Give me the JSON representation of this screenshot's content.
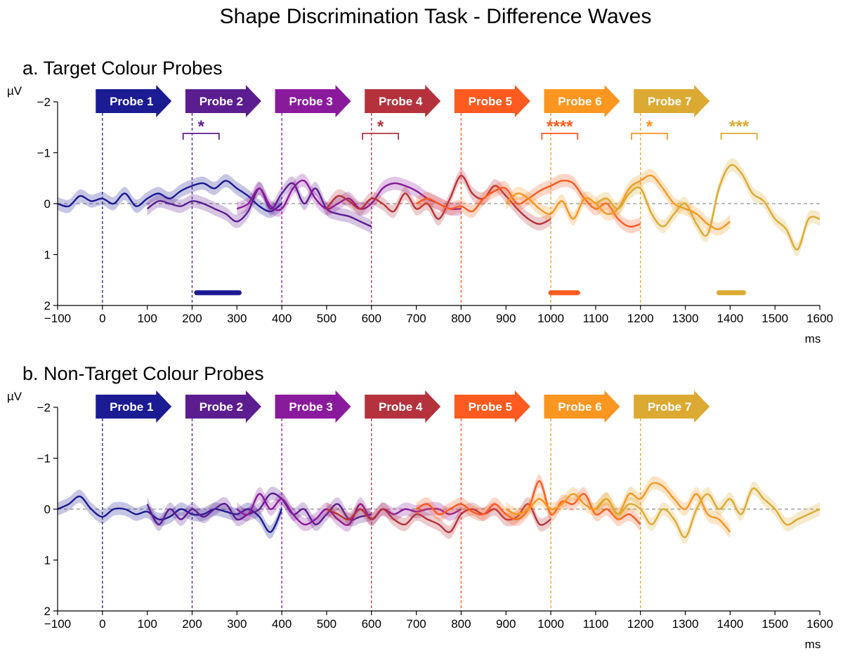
{
  "chart_data": {
    "type": "line",
    "title": "Shape Discrimination Task - Difference Waves",
    "xlabel": "ms",
    "ylabel": "µV",
    "xlim": [
      -100,
      1600
    ],
    "ylim": [
      -2,
      2
    ],
    "y_inverted": true,
    "xticks": [
      -100,
      0,
      100,
      200,
      300,
      400,
      500,
      600,
      700,
      800,
      900,
      1000,
      1100,
      1200,
      1300,
      1400,
      1500,
      1600
    ],
    "xtick_labels": [
      "−100",
      "0",
      "100",
      "200",
      "300",
      "400",
      "500",
      "600",
      "700",
      "800",
      "900",
      "1000",
      "1100",
      "1200",
      "1300",
      "1400",
      "1500",
      "1600"
    ],
    "yticks": [
      -2,
      -1,
      0,
      1,
      2
    ],
    "ytick_labels": [
      "−2",
      "−1",
      "0",
      "1",
      "2"
    ],
    "colors": [
      "#1b1b93",
      "#5b1d8f",
      "#8a1a9c",
      "#b5323c",
      "#ff5a1f",
      "#fb9620",
      "#dcaa32"
    ],
    "probes": [
      {
        "name": "Probe 1",
        "onset": 0,
        "arrow_start": -15
      },
      {
        "name": "Probe 2",
        "onset": 200,
        "arrow_start": 185
      },
      {
        "name": "Probe 3",
        "onset": 400,
        "arrow_start": 385
      },
      {
        "name": "Probe 4",
        "onset": 600,
        "arrow_start": 585
      },
      {
        "name": "Probe 5",
        "onset": 800,
        "arrow_start": 785
      },
      {
        "name": "Probe 6",
        "onset": 1000,
        "arrow_start": 985
      },
      {
        "name": "Probe 7",
        "onset": 1200,
        "arrow_start": 1185
      }
    ],
    "panels": [
      {
        "label": "a.   Target Colour Probes",
        "series": [
          {
            "name": "Probe 1",
            "x": [
              -100,
              -75,
              -50,
              -25,
              0,
              25,
              50,
              75,
              100,
              125,
              150,
              175,
              200,
              225,
              250,
              275,
              300,
              325,
              350,
              375,
              400
            ],
            "y": [
              0.0,
              0.05,
              -0.15,
              -0.05,
              -0.1,
              0.0,
              -0.2,
              0.05,
              -0.1,
              -0.2,
              -0.1,
              -0.25,
              -0.35,
              -0.4,
              -0.3,
              -0.45,
              -0.3,
              -0.15,
              0.05,
              0.15,
              0.0
            ]
          },
          {
            "name": "Probe 2",
            "x": [
              100,
              125,
              150,
              175,
              200,
              225,
              250,
              275,
              300,
              325,
              350,
              375,
              400,
              425,
              450,
              475,
              500,
              525,
              550,
              575,
              600
            ],
            "y": [
              0.1,
              -0.05,
              0.0,
              0.05,
              -0.05,
              0.0,
              0.1,
              0.2,
              0.35,
              0.15,
              -0.3,
              0.1,
              -0.2,
              -0.4,
              0.0,
              -0.3,
              0.1,
              0.2,
              0.25,
              0.35,
              0.45
            ]
          },
          {
            "name": "Probe 3",
            "x": [
              300,
              325,
              350,
              375,
              400,
              425,
              450,
              475,
              500,
              525,
              550,
              575,
              600,
              625,
              650,
              675,
              700,
              725,
              750,
              775,
              800
            ],
            "y": [
              0.1,
              0.0,
              -0.3,
              0.05,
              0.1,
              -0.3,
              -0.45,
              -0.1,
              0.1,
              0.0,
              -0.1,
              0.1,
              0.0,
              -0.3,
              -0.4,
              -0.35,
              -0.25,
              -0.1,
              0.0,
              0.1,
              0.1
            ]
          },
          {
            "name": "Probe 4",
            "x": [
              500,
              525,
              550,
              575,
              600,
              625,
              650,
              675,
              700,
              725,
              750,
              775,
              800,
              825,
              850,
              875,
              900,
              925,
              950,
              975,
              1000
            ],
            "y": [
              0.1,
              -0.15,
              -0.05,
              0.1,
              -0.1,
              0.0,
              0.15,
              -0.2,
              0.1,
              0.0,
              0.3,
              -0.1,
              -0.55,
              -0.2,
              -0.1,
              -0.35,
              -0.15,
              0.1,
              0.3,
              0.4,
              0.3
            ]
          },
          {
            "name": "Probe 5",
            "x": [
              700,
              725,
              750,
              775,
              800,
              825,
              850,
              875,
              900,
              925,
              950,
              975,
              1000,
              1025,
              1050,
              1075,
              1100,
              1125,
              1150,
              1175,
              1200
            ],
            "y": [
              0.0,
              -0.1,
              0.0,
              0.1,
              0.05,
              0.15,
              -0.1,
              -0.25,
              -0.3,
              0.0,
              -0.1,
              -0.25,
              -0.35,
              -0.45,
              -0.4,
              -0.1,
              0.1,
              0.0,
              0.3,
              0.45,
              0.4
            ]
          },
          {
            "name": "Probe 6",
            "x": [
              900,
              925,
              950,
              975,
              1000,
              1025,
              1050,
              1075,
              1100,
              1125,
              1150,
              1175,
              1200,
              1225,
              1250,
              1275,
              1300,
              1325,
              1350,
              1375,
              1400
            ],
            "y": [
              0.0,
              -0.2,
              -0.1,
              0.1,
              0.2,
              -0.05,
              0.3,
              -0.1,
              0.0,
              0.2,
              0.1,
              -0.3,
              -0.45,
              -0.55,
              -0.3,
              0.0,
              0.1,
              0.2,
              0.4,
              0.5,
              0.35
            ]
          },
          {
            "name": "Probe 7",
            "x": [
              1100,
              1125,
              1150,
              1175,
              1200,
              1225,
              1250,
              1275,
              1300,
              1325,
              1350,
              1375,
              1400,
              1425,
              1450,
              1475,
              1500,
              1525,
              1550,
              1575,
              1600
            ],
            "y": [
              0.0,
              -0.1,
              0.1,
              -0.2,
              -0.3,
              0.2,
              0.45,
              0.2,
              0.0,
              0.4,
              0.6,
              -0.3,
              -0.75,
              -0.6,
              -0.2,
              -0.05,
              0.3,
              0.5,
              0.9,
              0.3,
              0.3
            ]
          }
        ],
        "significance_labels": [
          {
            "probe": "Probe 2",
            "text": "*",
            "range": [
              180,
              260
            ]
          },
          {
            "probe": "Probe 4",
            "text": "*",
            "range": [
              580,
              660
            ]
          },
          {
            "probe": "Probe 5",
            "text": "****",
            "range": [
              980,
              1060
            ]
          },
          {
            "probe": "Probe 6",
            "text": "*",
            "range": [
              1180,
              1260
            ]
          },
          {
            "probe": "Probe 7",
            "text": "***",
            "range": [
              1380,
              1460
            ]
          }
        ],
        "significance_bars": [
          {
            "color_index": 0,
            "range": [
              210,
              305
            ],
            "y": 1.75
          },
          {
            "color_index": 4,
            "range": [
              1000,
              1060
            ],
            "y": 1.75
          },
          {
            "color_index": 6,
            "range": [
              1375,
              1430
            ],
            "y": 1.75
          }
        ]
      },
      {
        "label": "b.   Non-Target Colour Probes",
        "series": [
          {
            "name": "Probe 1",
            "x": [
              -100,
              -75,
              -50,
              -25,
              0,
              25,
              50,
              75,
              100,
              125,
              150,
              175,
              200,
              225,
              250,
              275,
              300,
              325,
              350,
              375,
              400
            ],
            "y": [
              0.0,
              -0.1,
              -0.25,
              0.0,
              0.15,
              0.0,
              0.0,
              0.1,
              0.05,
              0.2,
              0.15,
              0.0,
              0.1,
              0.1,
              0.0,
              0.05,
              0.1,
              0.0,
              0.15,
              0.45,
              0.0
            ]
          },
          {
            "name": "Probe 2",
            "x": [
              100,
              125,
              150,
              175,
              200,
              225,
              250,
              275,
              300,
              325,
              350,
              375,
              400,
              425,
              450,
              475,
              500,
              525,
              550,
              575,
              600
            ],
            "y": [
              -0.1,
              0.3,
              0.0,
              0.2,
              0.0,
              0.15,
              0.0,
              -0.1,
              0.2,
              0.1,
              0.0,
              -0.3,
              -0.2,
              0.1,
              0.0,
              0.3,
              0.1,
              -0.1,
              0.2,
              0.15,
              0.1
            ]
          },
          {
            "name": "Probe 3",
            "x": [
              300,
              325,
              350,
              375,
              400,
              425,
              450,
              475,
              500,
              525,
              550,
              575,
              600,
              625,
              650,
              675,
              700,
              725,
              750,
              775,
              800
            ],
            "y": [
              0.0,
              0.1,
              -0.3,
              0.0,
              -0.2,
              0.1,
              0.3,
              0.2,
              0.0,
              0.2,
              0.3,
              -0.1,
              0.2,
              0.0,
              0.1,
              0.0,
              0.05,
              0.0,
              0.0,
              0.1,
              0.0
            ]
          },
          {
            "name": "Probe 4",
            "x": [
              500,
              525,
              550,
              575,
              600,
              625,
              650,
              675,
              700,
              725,
              750,
              775,
              800,
              825,
              850,
              875,
              900,
              925,
              950,
              975,
              1000
            ],
            "y": [
              0.0,
              0.1,
              0.2,
              0.0,
              0.2,
              0.0,
              0.2,
              0.3,
              0.1,
              0.2,
              0.3,
              0.45,
              0.1,
              0.0,
              0.1,
              0.0,
              0.2,
              0.15,
              -0.1,
              0.3,
              0.2
            ]
          },
          {
            "name": "Probe 5",
            "x": [
              700,
              725,
              750,
              775,
              800,
              825,
              850,
              875,
              900,
              925,
              950,
              975,
              1000,
              1025,
              1050,
              1075,
              1100,
              1125,
              1150,
              1175,
              1200
            ],
            "y": [
              0.0,
              -0.1,
              0.1,
              0.0,
              -0.1,
              0.05,
              0.1,
              -0.1,
              0.1,
              0.2,
              0.0,
              -0.55,
              0.1,
              -0.15,
              -0.1,
              -0.3,
              0.1,
              0.0,
              0.2,
              0.1,
              0.3
            ]
          },
          {
            "name": "Probe 6",
            "x": [
              900,
              925,
              950,
              975,
              1000,
              1025,
              1050,
              1075,
              1100,
              1125,
              1150,
              1175,
              1200,
              1225,
              1250,
              1275,
              1300,
              1325,
              1350,
              1375,
              1400
            ],
            "y": [
              0.0,
              0.1,
              0.0,
              -0.2,
              0.0,
              -0.1,
              -0.3,
              -0.1,
              0.0,
              -0.2,
              0.1,
              -0.3,
              -0.2,
              -0.5,
              -0.45,
              -0.2,
              0.0,
              -0.3,
              0.1,
              0.2,
              0.45
            ]
          },
          {
            "name": "Probe 7",
            "x": [
              1100,
              1125,
              1150,
              1175,
              1200,
              1225,
              1250,
              1275,
              1300,
              1325,
              1350,
              1375,
              1400,
              1425,
              1450,
              1475,
              1500,
              1525,
              1550,
              1575,
              1600
            ],
            "y": [
              0.0,
              -0.2,
              0.1,
              -0.1,
              0.0,
              0.3,
              0.0,
              0.2,
              0.55,
              0.0,
              -0.3,
              0.0,
              -0.2,
              0.1,
              -0.4,
              -0.2,
              0.0,
              0.3,
              0.2,
              0.1,
              0.0
            ]
          }
        ],
        "significance_labels": [],
        "significance_bars": []
      }
    ]
  }
}
